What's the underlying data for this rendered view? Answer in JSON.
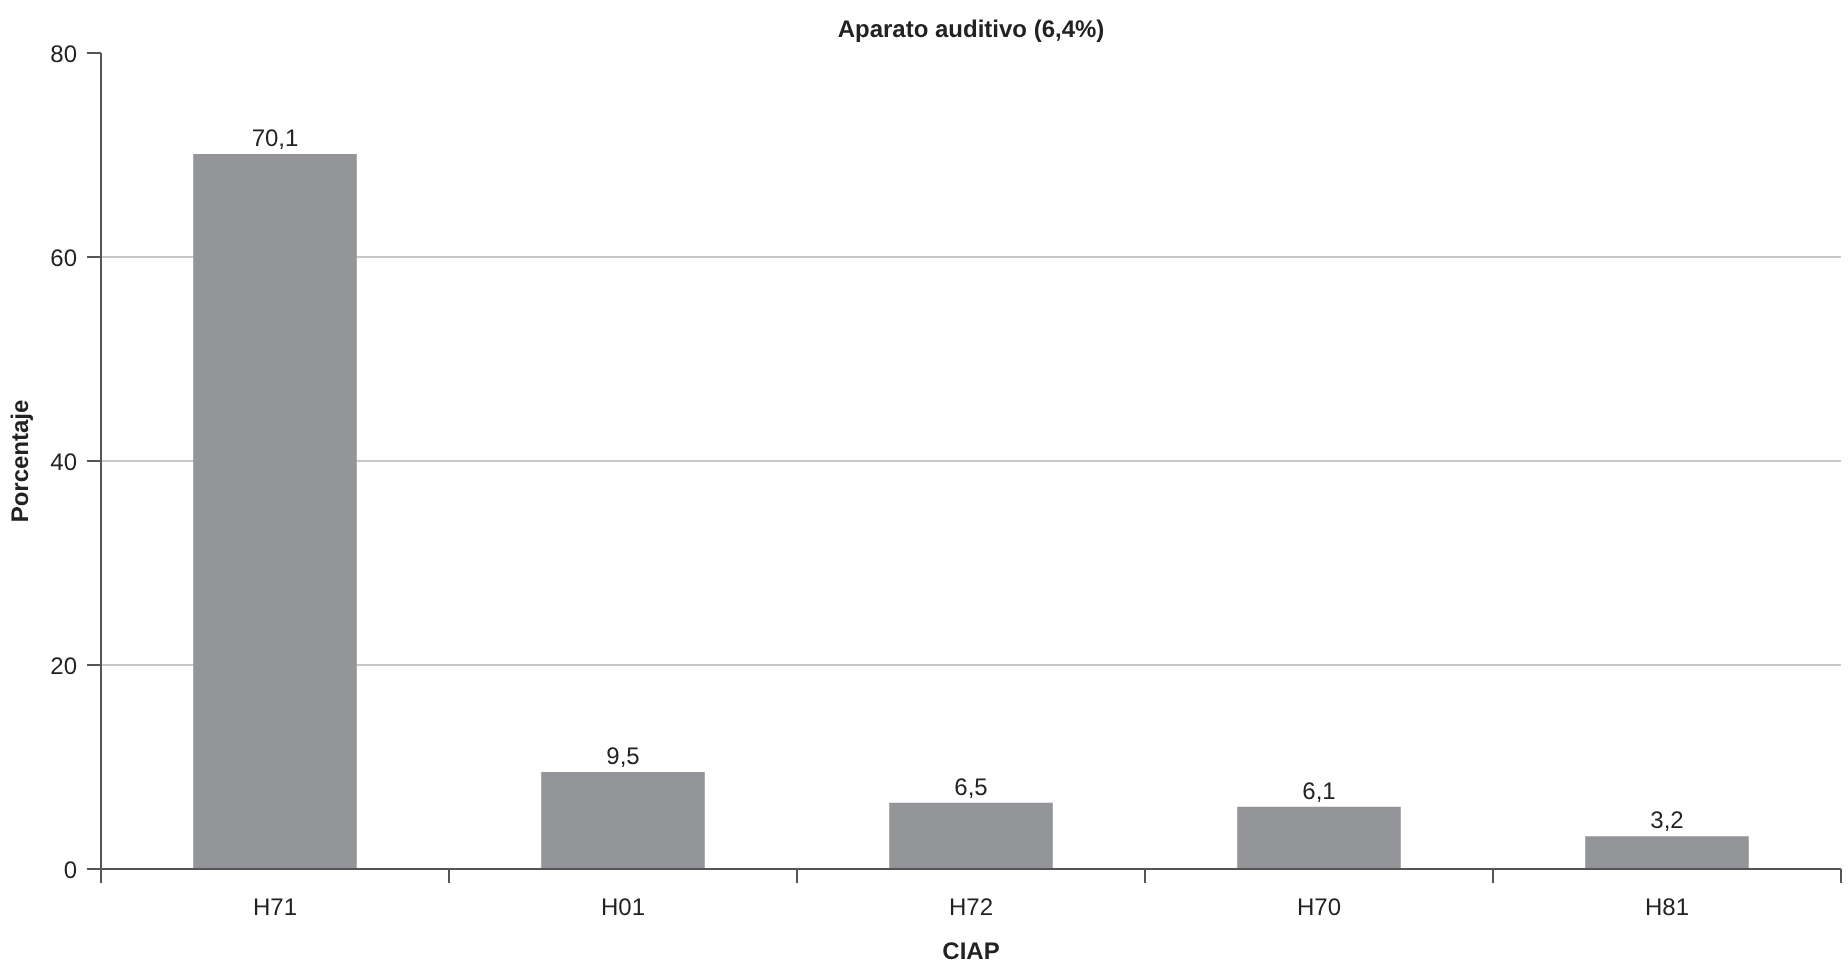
{
  "chart_data": {
    "type": "bar",
    "title": "Aparato auditivo (6,4%)",
    "xlabel": "CIAP",
    "ylabel": "Porcentaje",
    "categories": [
      "H71",
      "H01",
      "H72",
      "H70",
      "H81"
    ],
    "values": [
      70.1,
      9.5,
      6.5,
      6.1,
      3.2
    ],
    "value_labels": [
      "70,1",
      "9,5",
      "6,5",
      "6,1",
      "3,2"
    ],
    "color": "#939598",
    "ylim": [
      0,
      80
    ],
    "yticks": [
      0,
      20,
      40,
      60,
      80
    ],
    "grid": "y"
  }
}
